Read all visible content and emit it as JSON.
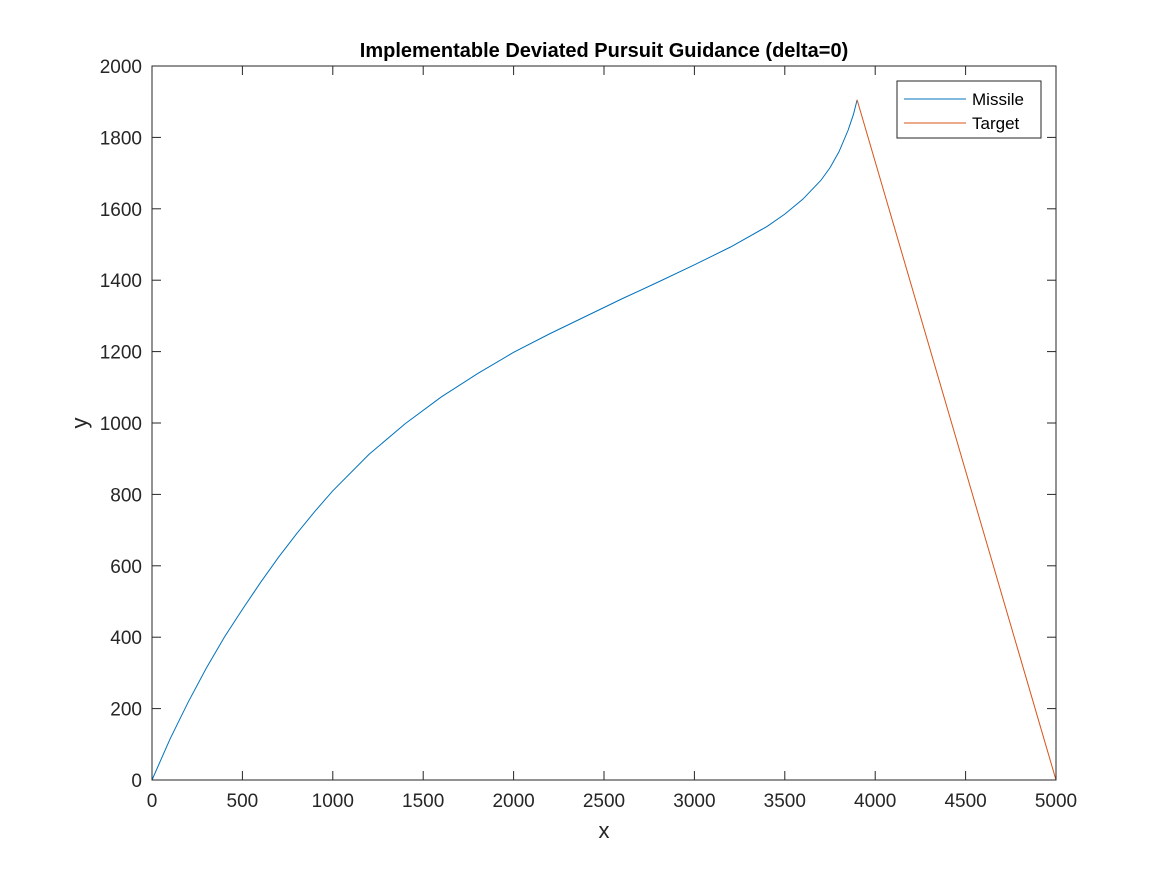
{
  "chart_data": {
    "type": "line",
    "title": "Implementable Deviated Pursuit Guidance (delta=0)",
    "xlabel": "x",
    "ylabel": "y",
    "xlim": [
      0,
      5000
    ],
    "ylim": [
      0,
      2000
    ],
    "xticks": [
      0,
      500,
      1000,
      1500,
      2000,
      2500,
      3000,
      3500,
      4000,
      4500,
      5000
    ],
    "yticks": [
      0,
      200,
      400,
      600,
      800,
      1000,
      1200,
      1400,
      1600,
      1800,
      2000
    ],
    "xtick_labels": [
      "0",
      "500",
      "1000",
      "1500",
      "2000",
      "2500",
      "3000",
      "3500",
      "4000",
      "4500",
      "5000"
    ],
    "ytick_labels": [
      "0",
      "200",
      "400",
      "600",
      "800",
      "1000",
      "1200",
      "1400",
      "1600",
      "1800",
      "2000"
    ],
    "grid": false,
    "legend_position": "top-right",
    "series": [
      {
        "name": "Missile",
        "color": "#0072BD",
        "x": [
          0,
          100,
          200,
          300,
          400,
          500,
          600,
          700,
          800,
          900,
          1000,
          1200,
          1400,
          1600,
          1800,
          2000,
          2200,
          2400,
          2600,
          2800,
          3000,
          3200,
          3400,
          3500,
          3600,
          3700,
          3750,
          3800,
          3850,
          3880,
          3900
        ],
        "y": [
          0,
          115,
          218,
          313,
          400,
          478,
          553,
          624,
          690,
          752,
          810,
          912,
          998,
          1073,
          1138,
          1198,
          1250,
          1299,
          1348,
          1395,
          1443,
          1493,
          1550,
          1585,
          1627,
          1680,
          1715,
          1760,
          1820,
          1865,
          1905
        ]
      },
      {
        "name": "Target",
        "color": "#D95319",
        "x": [
          5000,
          3900
        ],
        "y": [
          0,
          1905
        ]
      }
    ],
    "legend": [
      "Missile",
      "Target"
    ]
  }
}
